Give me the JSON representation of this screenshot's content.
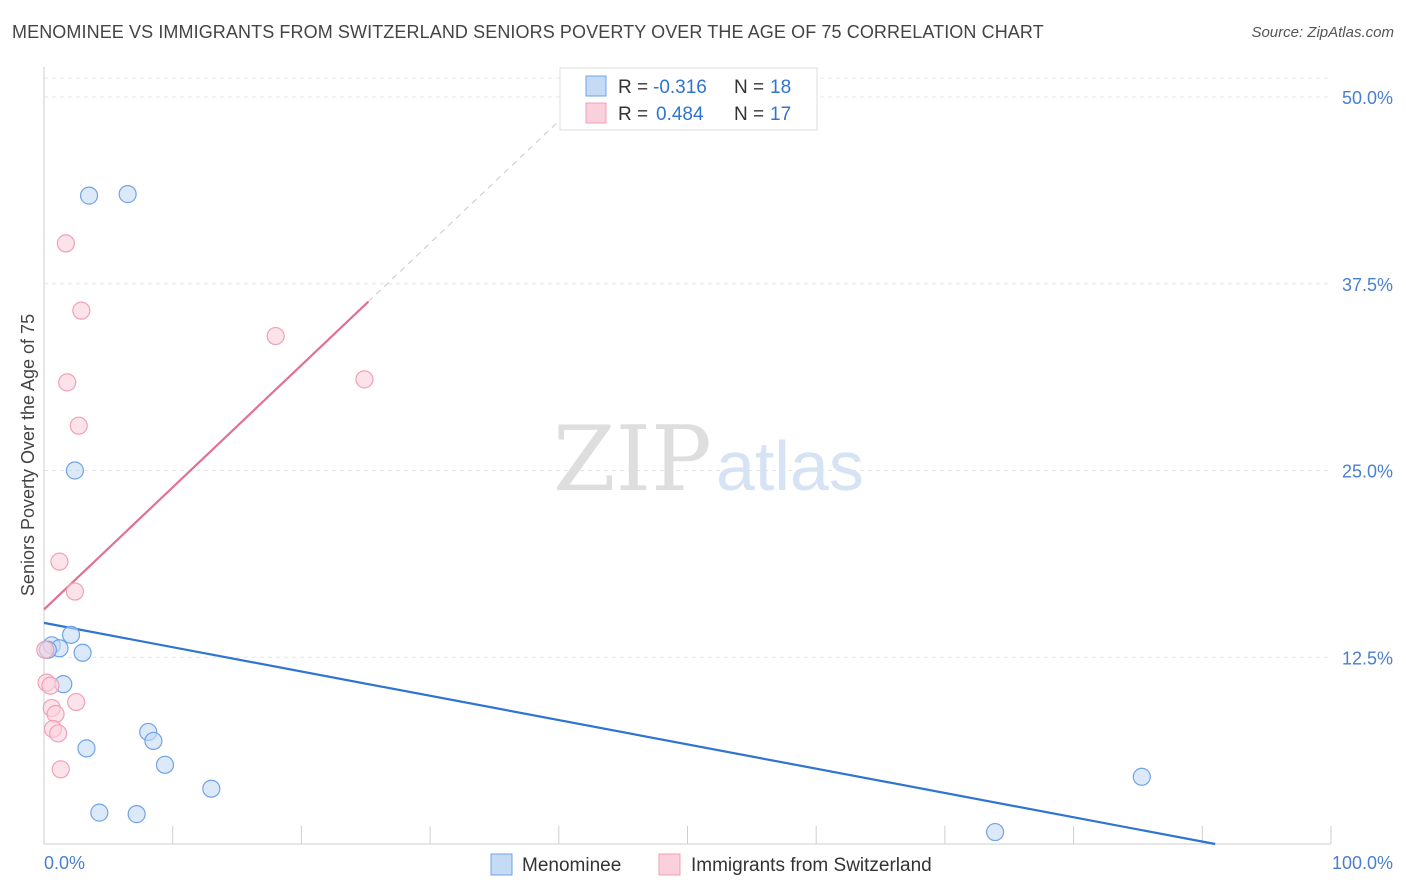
{
  "chart_data": {
    "type": "scatter",
    "title": "MENOMINEE VS IMMIGRANTS FROM SWITZERLAND SENIORS POVERTY OVER THE AGE OF 75 CORRELATION CHART",
    "source": "Source: ZipAtlas.com",
    "xlabel": "",
    "ylabel": "Seniors Poverty Over the Age of 75",
    "xlim": [
      0,
      100
    ],
    "ylim": [
      0,
      50
    ],
    "x_tick_labels": [
      "0.0%",
      "100.0%"
    ],
    "y_ticks": [
      12.5,
      25,
      37.5,
      50
    ],
    "y_tick_labels": [
      "12.5%",
      "25.0%",
      "37.5%",
      "50.0%"
    ],
    "grid": true,
    "watermark": {
      "zip": "ZIP",
      "atlas": "atlas"
    },
    "legend_stats": [
      {
        "r_label": "R =",
        "r_value": "-0.316",
        "n_label": "N =",
        "n_value": "18"
      },
      {
        "r_label": "R =",
        "r_value": "0.484",
        "n_label": "N =",
        "n_value": "17"
      }
    ],
    "series": [
      {
        "name": "Menominee",
        "color": "#6fa3e8",
        "fill": "#c5daf5",
        "line_color": "#2f74d0",
        "trend": {
          "x0": 0,
          "y0": 14.8,
          "x1": 91,
          "y1": 0
        },
        "points": [
          {
            "x": 3.5,
            "y": 43.4
          },
          {
            "x": 6.5,
            "y": 43.5
          },
          {
            "x": 2.4,
            "y": 25.0
          },
          {
            "x": 2.1,
            "y": 14.0
          },
          {
            "x": 0.6,
            "y": 13.3
          },
          {
            "x": 1.2,
            "y": 13.1
          },
          {
            "x": 3.0,
            "y": 12.8
          },
          {
            "x": 1.5,
            "y": 10.7
          },
          {
            "x": 8.1,
            "y": 7.5
          },
          {
            "x": 8.5,
            "y": 6.9
          },
          {
            "x": 3.3,
            "y": 6.4
          },
          {
            "x": 9.4,
            "y": 5.3
          },
          {
            "x": 13.0,
            "y": 3.7
          },
          {
            "x": 4.3,
            "y": 2.1
          },
          {
            "x": 7.2,
            "y": 2.0
          },
          {
            "x": 85.3,
            "y": 4.5
          },
          {
            "x": 73.9,
            "y": 0.8
          },
          {
            "x": 0.3,
            "y": 13.0
          }
        ]
      },
      {
        "name": "Immigrants from Switzerland",
        "color": "#f0a0b8",
        "fill": "#fad0dc",
        "line_color": "#e07095",
        "trend": {
          "x0": 0,
          "y0": 15.7,
          "x1": 25.2,
          "y1": 36.3
        },
        "trend_extension": {
          "x0": 25.2,
          "y0": 36.3,
          "x1": 40.5,
          "y1": 48.8
        },
        "points": [
          {
            "x": 1.7,
            "y": 40.2
          },
          {
            "x": 2.9,
            "y": 35.7
          },
          {
            "x": 18.0,
            "y": 34.0
          },
          {
            "x": 1.8,
            "y": 30.9
          },
          {
            "x": 24.9,
            "y": 31.1
          },
          {
            "x": 2.7,
            "y": 28.0
          },
          {
            "x": 1.2,
            "y": 18.9
          },
          {
            "x": 2.4,
            "y": 16.9
          },
          {
            "x": 0.1,
            "y": 13.0
          },
          {
            "x": 0.2,
            "y": 10.8
          },
          {
            "x": 0.5,
            "y": 10.6
          },
          {
            "x": 2.5,
            "y": 9.5
          },
          {
            "x": 0.6,
            "y": 9.1
          },
          {
            "x": 0.9,
            "y": 8.7
          },
          {
            "x": 0.7,
            "y": 7.7
          },
          {
            "x": 1.1,
            "y": 7.4
          },
          {
            "x": 1.3,
            "y": 5.0
          }
        ]
      }
    ]
  }
}
